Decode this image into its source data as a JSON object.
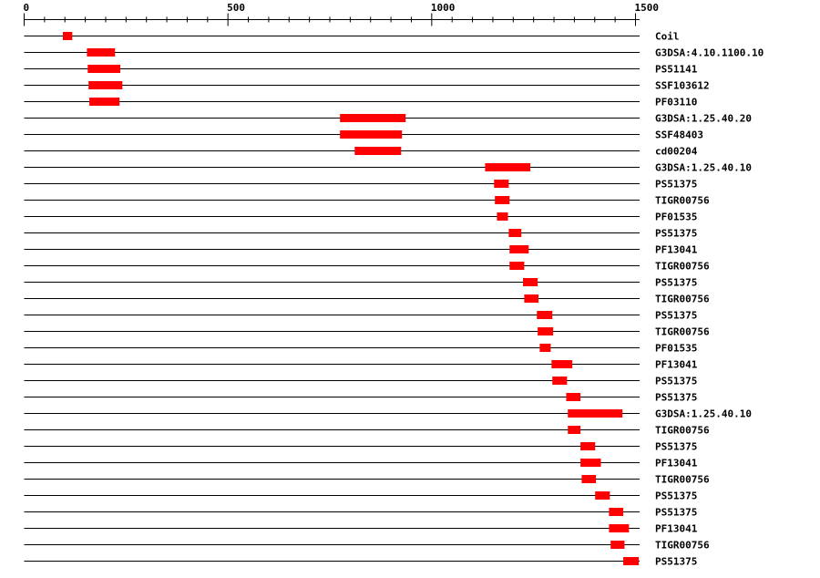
{
  "chart_data": {
    "type": "domain-architecture",
    "axis": {
      "min": 0,
      "max": 1500,
      "ticks": [
        0,
        500,
        1000,
        1500
      ],
      "minor_step": 50
    },
    "bar_color": "#ff0000",
    "tracks": [
      {
        "label": "Coil",
        "start": 95,
        "end": 118
      },
      {
        "label": "G3DSA:4.10.1100.10",
        "start": 154,
        "end": 223
      },
      {
        "label": "PS51141",
        "start": 156,
        "end": 236
      },
      {
        "label": "SSF103612",
        "start": 158,
        "end": 241
      },
      {
        "label": "PF03110",
        "start": 160,
        "end": 234
      },
      {
        "label": "G3DSA:1.25.40.20",
        "start": 775,
        "end": 936
      },
      {
        "label": "SSF48403",
        "start": 775,
        "end": 927
      },
      {
        "label": "cd00204",
        "start": 811,
        "end": 925
      },
      {
        "label": "G3DSA:1.25.40.10",
        "start": 1131,
        "end": 1242
      },
      {
        "label": "PS51375",
        "start": 1153,
        "end": 1189
      },
      {
        "label": "TIGR00756",
        "start": 1155,
        "end": 1191
      },
      {
        "label": "PF01535",
        "start": 1160,
        "end": 1187
      },
      {
        "label": "PS51375",
        "start": 1189,
        "end": 1220
      },
      {
        "label": "PF13041",
        "start": 1191,
        "end": 1238
      },
      {
        "label": "TIGR00756",
        "start": 1191,
        "end": 1227
      },
      {
        "label": "PS51375",
        "start": 1224,
        "end": 1260
      },
      {
        "label": "TIGR00756",
        "start": 1227,
        "end": 1262
      },
      {
        "label": "PS51375",
        "start": 1258,
        "end": 1296
      },
      {
        "label": "TIGR00756",
        "start": 1260,
        "end": 1298
      },
      {
        "label": "PF01535",
        "start": 1265,
        "end": 1292
      },
      {
        "label": "PF13041",
        "start": 1294,
        "end": 1345
      },
      {
        "label": "PS51375",
        "start": 1296,
        "end": 1332
      },
      {
        "label": "PS51375",
        "start": 1330,
        "end": 1365
      },
      {
        "label": "G3DSA:1.25.40.10",
        "start": 1334,
        "end": 1468
      },
      {
        "label": "TIGR00756",
        "start": 1334,
        "end": 1365
      },
      {
        "label": "PS51375",
        "start": 1365,
        "end": 1401
      },
      {
        "label": "PF13041",
        "start": 1365,
        "end": 1415
      },
      {
        "label": "TIGR00756",
        "start": 1368,
        "end": 1403
      },
      {
        "label": "PS51375",
        "start": 1401,
        "end": 1437
      },
      {
        "label": "PS51375",
        "start": 1435,
        "end": 1470
      },
      {
        "label": "PF13041",
        "start": 1435,
        "end": 1484
      },
      {
        "label": "TIGR00756",
        "start": 1439,
        "end": 1473
      },
      {
        "label": "PS51375",
        "start": 1470,
        "end": 1508
      }
    ]
  }
}
